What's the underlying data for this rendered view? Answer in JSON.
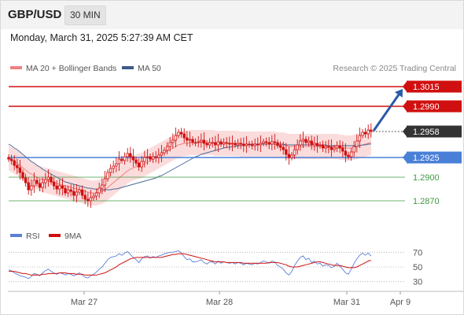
{
  "header": {
    "symbol": "GBP/USD",
    "timeframe": "30 MIN",
    "datetime": "Monday, March 31, 2025 5:27:39 AM CET"
  },
  "legend": {
    "ma20_bollinger": "MA 20 + Bollinger Bands",
    "ma50": "MA 50",
    "credit": "Research © 2025 Trading Central",
    "rsi": "RSI",
    "rsi_ma": "9MA"
  },
  "colors": {
    "candle": "#d01010",
    "bollinger_fill": "#fbd8d8",
    "ma20": "#f08080",
    "ma50": "#4a6a9a",
    "resistance": "#d01010",
    "pivot": "#4a7fd8",
    "support": "#3f9a3f",
    "current_price": "#333333",
    "rsi": "#5b7fd6",
    "rsi_ma": "#d01010",
    "arrow": "#2a5aa8"
  },
  "chart_data": [
    {
      "type": "candlestick",
      "y_range": [
        1.2845,
        1.303
      ],
      "x_ticks": [
        "Mar 27",
        "Mar 28",
        "Mar 31",
        "Apr 9"
      ],
      "price_labels": [
        "1.3015",
        "1.2990",
        "1.2958",
        "1.2925",
        "1.2900",
        "1.2870"
      ],
      "levels": [
        {
          "role": "resistance",
          "value": 1.3015
        },
        {
          "role": "resistance",
          "value": 1.299
        },
        {
          "role": "current",
          "value": 1.2958
        },
        {
          "role": "pivot",
          "value": 1.2925
        },
        {
          "role": "support",
          "value": 1.29
        },
        {
          "role": "support",
          "value": 1.287
        }
      ],
      "close": [
        1.2923,
        1.2921,
        1.2915,
        1.2912,
        1.2906,
        1.2899,
        1.2893,
        1.2884,
        1.2889,
        1.2896,
        1.2892,
        1.2887,
        1.2893,
        1.2897,
        1.29,
        1.2894,
        1.2889,
        1.2885,
        1.2889,
        1.2886,
        1.288,
        1.2884,
        1.2882,
        1.2877,
        1.2881,
        1.2884,
        1.2877,
        1.2872,
        1.287,
        1.2874,
        1.2876,
        1.288,
        1.2886,
        1.289,
        1.2898,
        1.2906,
        1.2911,
        1.2914,
        1.2917,
        1.2923,
        1.2921,
        1.2926,
        1.293,
        1.2926,
        1.2922,
        1.2918,
        1.2913,
        1.292,
        1.2925,
        1.2926,
        1.2923,
        1.2926,
        1.2925,
        1.2928,
        1.2931,
        1.2934,
        1.2939,
        1.2944,
        1.2947,
        1.2953,
        1.2957,
        1.2955,
        1.295,
        1.2947,
        1.2948,
        1.2944,
        1.2944,
        1.2945,
        1.2947,
        1.2943,
        1.2941,
        1.2944,
        1.2944,
        1.2941,
        1.2945,
        1.2942,
        1.2944,
        1.2943,
        1.2942,
        1.2943,
        1.2941,
        1.2943,
        1.2942,
        1.294,
        1.2942,
        1.2941,
        1.294,
        1.2942,
        1.2941,
        1.2943,
        1.2945,
        1.2944,
        1.2942,
        1.2945,
        1.2944,
        1.294,
        1.2938,
        1.2935,
        1.2929,
        1.2925,
        1.2928,
        1.2935,
        1.2941,
        1.2946,
        1.2948,
        1.2944,
        1.2946,
        1.2941,
        1.2943,
        1.294,
        1.2941,
        1.2937,
        1.2939,
        1.2938,
        1.2935,
        1.2937,
        1.294,
        1.2937,
        1.2933,
        1.2928,
        1.2926,
        1.2932,
        1.2939,
        1.2946,
        1.2953,
        1.2957,
        1.2955,
        1.296,
        1.2958
      ],
      "ma20": [
        1.2925,
        1.2922,
        1.292,
        1.2918,
        1.2915,
        1.2912,
        1.2909,
        1.2906,
        1.2904,
        1.2902,
        1.29,
        1.2898,
        1.2897,
        1.2896,
        1.2895,
        1.2894,
        1.2893,
        1.2892,
        1.2891,
        1.289,
        1.2889,
        1.2888,
        1.2887,
        1.2886,
        1.2885,
        1.2884,
        1.2883,
        1.2882,
        1.2881,
        1.288,
        1.288,
        1.288,
        1.2881,
        1.2882,
        1.2884,
        1.2887,
        1.289,
        1.2893,
        1.2896,
        1.2899,
        1.2902,
        1.2905,
        1.2908,
        1.291,
        1.2912,
        1.2913,
        1.2914,
        1.2915,
        1.2917,
        1.2919,
        1.2921,
        1.2923,
        1.2925,
        1.2927,
        1.2929,
        1.2931,
        1.2933,
        1.2935,
        1.2937,
        1.2939,
        1.2941,
        1.2942,
        1.2943,
        1.2943,
        1.2944,
        1.2944,
        1.2944,
        1.2944,
        1.2944,
        1.2944,
        1.2944,
        1.2944,
        1.2944,
        1.2943,
        1.2943,
        1.2943,
        1.2943,
        1.2943,
        1.2943,
        1.2943,
        1.2943,
        1.2943,
        1.2942,
        1.2942,
        1.2942,
        1.2942,
        1.2942,
        1.2942,
        1.2942,
        1.2942,
        1.2942,
        1.2942,
        1.2942,
        1.2942,
        1.2942,
        1.2941,
        1.2941,
        1.2941,
        1.294,
        1.2939,
        1.2939,
        1.2939,
        1.2939,
        1.2939,
        1.2939,
        1.2939,
        1.2939,
        1.2939,
        1.2939,
        1.2939,
        1.2939,
        1.2939,
        1.2939,
        1.2939,
        1.2939,
        1.2939,
        1.2939,
        1.2938,
        1.2938,
        1.2937,
        1.2937,
        1.2937,
        1.2938,
        1.2939,
        1.294,
        1.2941,
        1.2942,
        1.2943,
        1.2944
      ],
      "ma50": [
        1.2942,
        1.294,
        1.2937,
        1.2935,
        1.2932,
        1.2929,
        1.2926,
        1.2923,
        1.292,
        1.2918,
        1.2915,
        1.2913,
        1.291,
        1.2908,
        1.2906,
        1.2904,
        1.2902,
        1.29,
        1.2898,
        1.2896,
        1.2894,
        1.2893,
        1.2892,
        1.2891,
        1.289,
        1.2889,
        1.2888,
        1.2887,
        1.2886,
        1.2886,
        1.2885,
        1.2885,
        1.2884,
        1.2884,
        1.2884,
        1.2884,
        1.2884,
        1.2885,
        1.2885,
        1.2886,
        1.2887,
        1.2888,
        1.2889,
        1.289,
        1.2891,
        1.2892,
        1.2893,
        1.2894,
        1.2895,
        1.2896,
        1.2897,
        1.2898,
        1.2899,
        1.2901,
        1.2902,
        1.2904,
        1.2906,
        1.2908,
        1.291,
        1.2912,
        1.2914,
        1.2916,
        1.2918,
        1.292,
        1.2922,
        1.2924,
        1.2926,
        1.2927,
        1.2929,
        1.293,
        1.2931,
        1.2932,
        1.2933,
        1.2934,
        1.2935,
        1.2936,
        1.2937,
        1.2938,
        1.2938,
        1.2939,
        1.2939,
        1.294,
        1.294,
        1.2941,
        1.2941,
        1.2941,
        1.2942,
        1.2942,
        1.2942,
        1.2942,
        1.2942,
        1.2942,
        1.2942,
        1.2942,
        1.2942,
        1.2942,
        1.2942,
        1.2942,
        1.2941,
        1.2941,
        1.2941,
        1.2941,
        1.2941,
        1.2941,
        1.2941,
        1.2941,
        1.2941,
        1.2941,
        1.2941,
        1.2941,
        1.2941,
        1.2941,
        1.2941,
        1.294,
        1.294,
        1.294,
        1.294,
        1.294,
        1.294,
        1.294,
        1.294,
        1.294,
        1.294,
        1.294,
        1.294,
        1.2941,
        1.2941,
        1.2942,
        1.2942
      ],
      "bb_width": 0.0016,
      "projection": {
        "from": 1.2958,
        "to": 1.3015
      }
    },
    {
      "type": "line",
      "name": "RSI",
      "y_range": [
        20,
        80
      ],
      "y_ticks": [
        70,
        50,
        30
      ],
      "rsi": [
        46,
        45,
        42,
        40,
        38,
        37,
        36,
        34,
        37,
        41,
        40,
        38,
        42,
        45,
        47,
        44,
        42,
        40,
        42,
        41,
        39,
        41,
        40,
        38,
        40,
        42,
        39,
        36,
        35,
        38,
        40,
        43,
        47,
        50,
        55,
        60,
        63,
        64,
        65,
        68,
        66,
        69,
        71,
        67,
        63,
        60,
        56,
        61,
        64,
        65,
        62,
        64,
        63,
        65,
        66,
        68,
        69,
        70,
        70,
        71,
        72,
        69,
        64,
        60,
        61,
        57,
        57,
        58,
        60,
        56,
        54,
        57,
        57,
        54,
        58,
        55,
        57,
        56,
        55,
        56,
        54,
        56,
        55,
        53,
        55,
        54,
        53,
        55,
        54,
        56,
        58,
        57,
        55,
        58,
        57,
        52,
        50,
        47,
        42,
        39,
        44,
        52,
        58,
        63,
        65,
        60,
        62,
        56,
        58,
        54,
        55,
        51,
        53,
        52,
        49,
        51,
        55,
        51,
        47,
        42,
        40,
        47,
        55,
        61,
        66,
        69,
        66,
        69,
        65
      ],
      "rsi_ma": [
        44,
        44,
        44,
        43,
        42,
        41,
        41,
        40,
        39,
        39,
        39,
        39,
        40,
        40,
        41,
        41,
        41,
        41,
        42,
        42,
        42,
        41,
        41,
        41,
        40,
        40,
        40,
        39,
        39,
        39,
        39,
        39,
        40,
        41,
        42,
        44,
        46,
        48,
        50,
        53,
        55,
        57,
        59,
        61,
        62,
        63,
        63,
        63,
        63,
        63,
        63,
        63,
        63,
        63,
        63,
        64,
        65,
        66,
        67,
        67,
        68,
        68,
        68,
        67,
        66,
        65,
        64,
        63,
        62,
        61,
        60,
        59,
        58,
        57,
        57,
        57,
        57,
        56,
        56,
        56,
        56,
        56,
        56,
        55,
        55,
        55,
        55,
        55,
        55,
        55,
        55,
        55,
        56,
        56,
        56,
        56,
        55,
        54,
        53,
        51,
        50,
        50,
        50,
        51,
        52,
        53,
        54,
        55,
        56,
        57,
        57,
        56,
        55,
        54,
        53,
        52,
        52,
        52,
        51,
        50,
        49,
        49,
        49,
        50,
        52,
        54,
        56,
        58,
        59
      ]
    }
  ]
}
